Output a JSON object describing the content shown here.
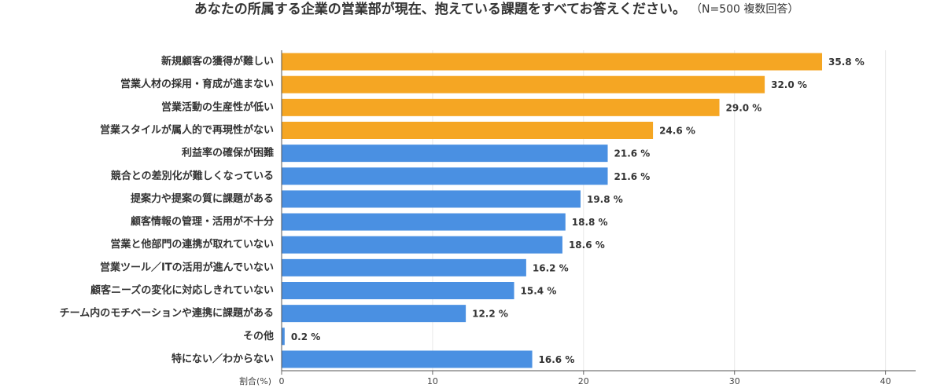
{
  "chart_data": {
    "type": "hbar",
    "title": "あなたの所属する企業の営業部が現在、抱えている課題をすべてお答えください。",
    "subtitle": "（N=500 複数回答）",
    "x_label": "割合(%)",
    "categories": [
      "新規顧客の獲得が難しい",
      "営業人材の採用・育成が進まない",
      "営業活動の生産性が低い",
      "営業スタイルが属人的で再現性がない",
      "利益率の確保が困難",
      "競合との差別化が難しくなっている",
      "提案力や提案の質に課題がある",
      "顧客情報の管理・活用が不十分",
      "営業と他部門の連携が取れていない",
      "営業ツール／ITの活用が進んでいない",
      "顧客ニーズの変化に対応しきれていない",
      "チーム内のモチベーションや連携に課題がある",
      "その他",
      "特にない／わからない"
    ],
    "values": [
      35.8,
      32.0,
      29.0,
      24.6,
      21.6,
      21.6,
      19.8,
      18.8,
      18.6,
      16.2,
      15.4,
      12.2,
      0.2,
      16.6
    ],
    "value_labels": [
      "35.8 %",
      "32.0 %",
      "29.0 %",
      "24.6 %",
      "21.6 %",
      "21.6 %",
      "19.8 %",
      "18.8 %",
      "18.6 %",
      "16.2 %",
      "15.4 %",
      "12.2 %",
      "0.2 %",
      "16.6 %"
    ],
    "colors": [
      "#f5a623",
      "#f5a623",
      "#f5a623",
      "#f5a623",
      "#4a90e2",
      "#4a90e2",
      "#4a90e2",
      "#4a90e2",
      "#4a90e2",
      "#4a90e2",
      "#4a90e2",
      "#4a90e2",
      "#4a90e2",
      "#4a90e2"
    ],
    "xlim": [
      0,
      42
    ],
    "xticks": [
      0,
      10,
      20,
      30,
      40
    ],
    "grid": true
  }
}
